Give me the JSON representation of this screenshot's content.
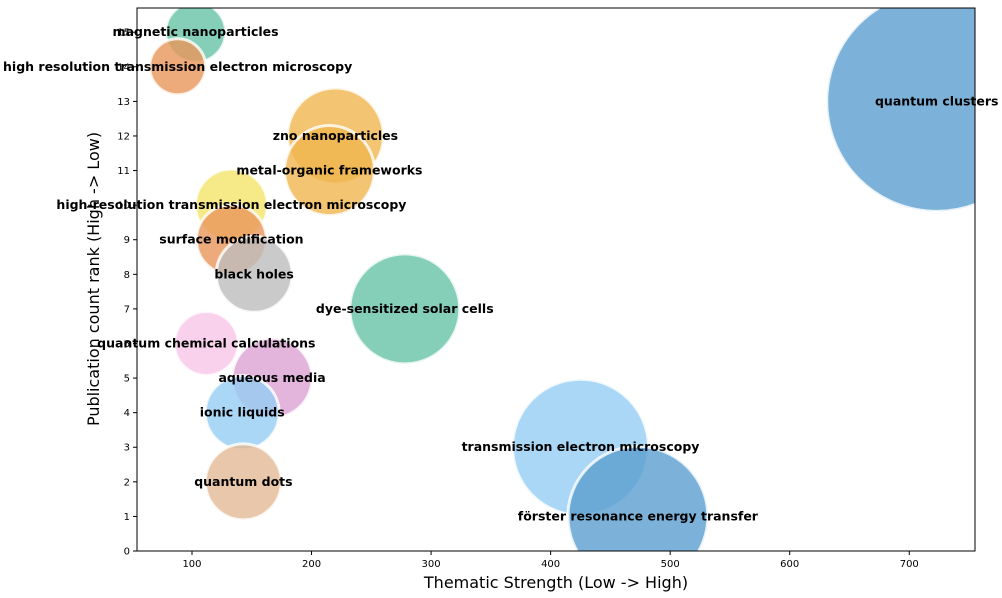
{
  "chart_data": {
    "type": "scatter",
    "xlabel": "Thematic Strength (Low -> High)",
    "ylabel": "Publication count rank (High -> Low)",
    "xlim": [
      54,
      755
    ],
    "ylim": [
      0,
      15.7
    ],
    "xticks": [
      100,
      200,
      300,
      400,
      500,
      600,
      700
    ],
    "yticks": [
      0,
      1,
      2,
      3,
      4,
      5,
      6,
      7,
      8,
      9,
      10,
      11,
      12,
      13,
      14,
      15
    ],
    "grid": false,
    "legend": "none",
    "points": [
      {
        "label": "magnetic nanoparticles",
        "x": 103,
        "y": 15,
        "size": 30,
        "color": "#66c2a5"
      },
      {
        "label": "high resolution transmission electron microscopy",
        "x": 88,
        "y": 14,
        "size": 28,
        "color": "#e9965a"
      },
      {
        "label": "quantum clusters",
        "x": 723,
        "y": 13,
        "size": 110,
        "color": "#5b9fcf"
      },
      {
        "label": "zno nanoparticles",
        "x": 220,
        "y": 12,
        "size": 48,
        "color": "#f0b54f"
      },
      {
        "label": "metal-organic frameworks",
        "x": 215,
        "y": 11,
        "size": 45,
        "color": "#f0b54f"
      },
      {
        "label": "high-resolution transmission electron microscopy",
        "x": 133,
        "y": 10,
        "size": 36,
        "color": "#f3e46a"
      },
      {
        "label": "surface modification",
        "x": 133,
        "y": 9,
        "size": 35,
        "color": "#e9965a"
      },
      {
        "label": "black holes",
        "x": 152,
        "y": 8,
        "size": 38,
        "color": "#bdbdbd"
      },
      {
        "label": "dye-sensitized solar cells",
        "x": 278,
        "y": 7,
        "size": 55,
        "color": "#66c2a5"
      },
      {
        "label": "quantum chemical calculations",
        "x": 112,
        "y": 6,
        "size": 32,
        "color": "#f9c6e9"
      },
      {
        "label": "aqueous media",
        "x": 167,
        "y": 5,
        "size": 40,
        "color": "#dca3d5"
      },
      {
        "label": "ionic liquids",
        "x": 142,
        "y": 4,
        "size": 37,
        "color": "#95cdf2"
      },
      {
        "label": "quantum dots",
        "x": 143,
        "y": 2,
        "size": 38,
        "color": "#e2b995"
      },
      {
        "label": "transmission electron microscopy",
        "x": 425,
        "y": 3,
        "size": 68,
        "color": "#95cdf2"
      },
      {
        "label": "förster resonance energy transfer",
        "x": 473,
        "y": 1,
        "size": 70,
        "color": "#5b9fcf"
      }
    ]
  }
}
